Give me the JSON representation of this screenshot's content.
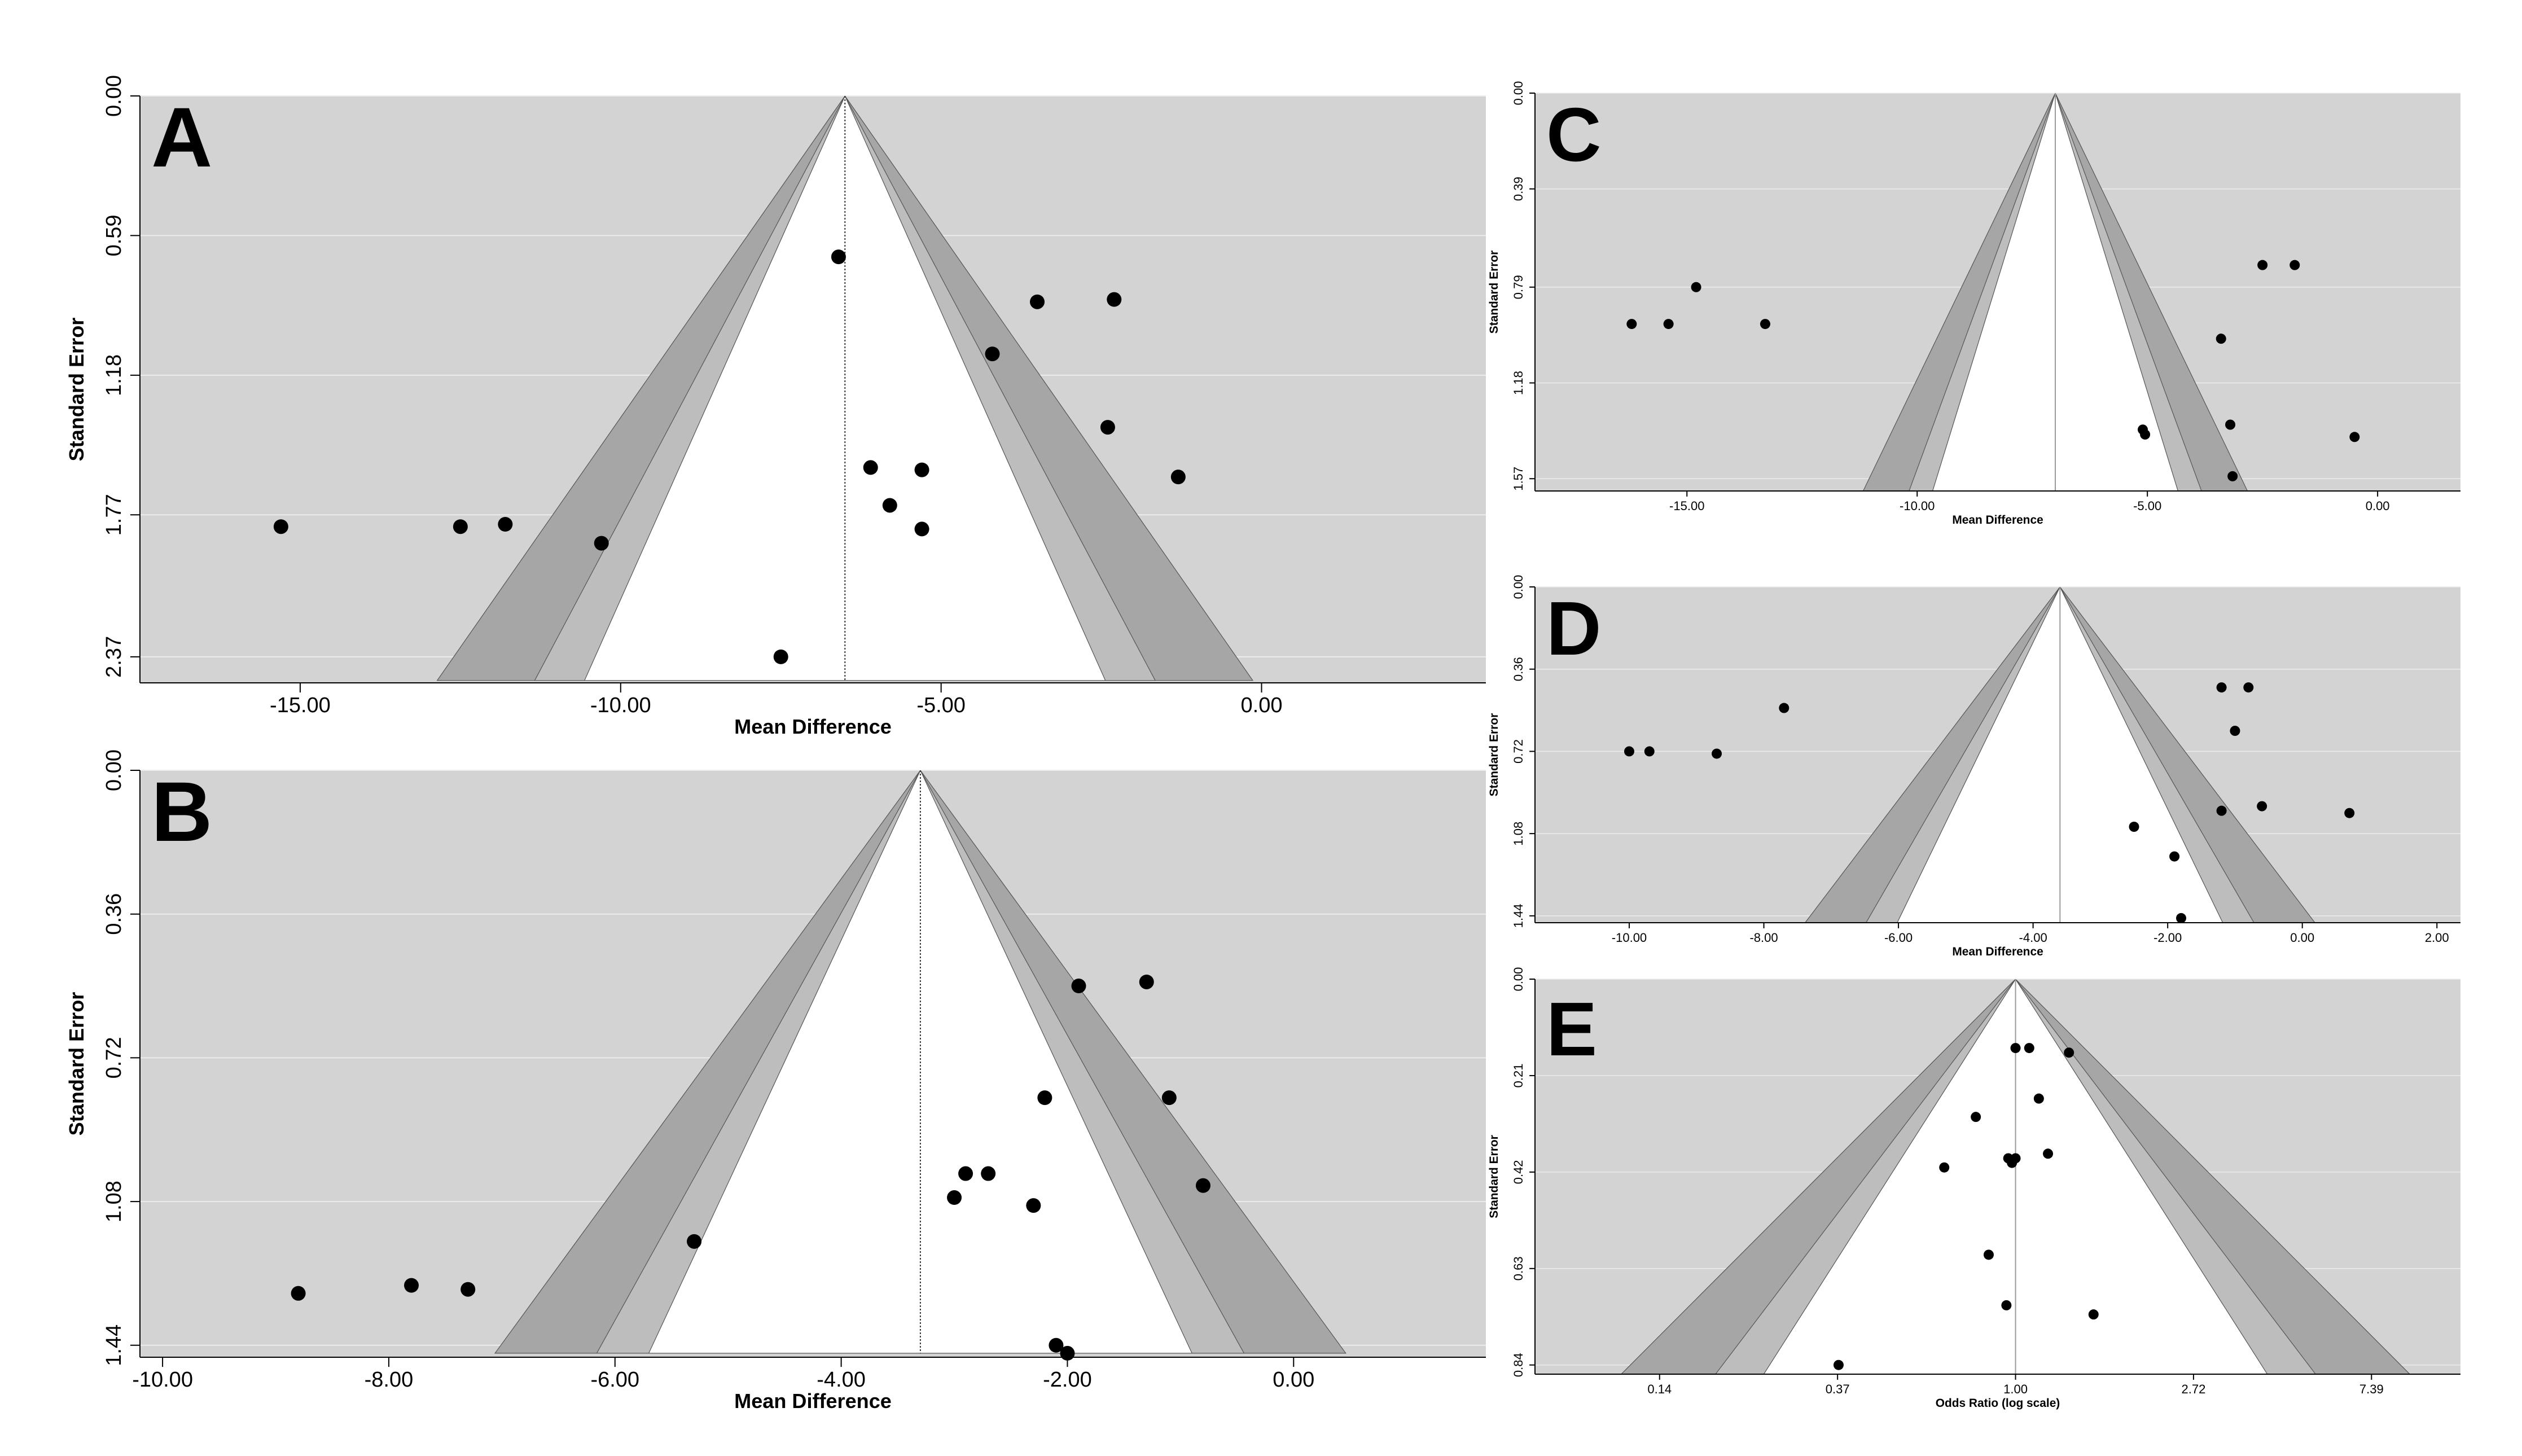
{
  "figure": {
    "description_title": "",
    "colors": {
      "plot_bg": "#d3d3d3",
      "funnel_outer": "#a6a6a6",
      "funnel_mid": "#bdbdbd",
      "funnel_inner": "#ffffff",
      "gridline": "#ececec",
      "point": "#000000"
    }
  },
  "chart_data": [
    {
      "id": "A",
      "letter": "A",
      "type": "scatter",
      "subtype": "funnel",
      "xlabel": "Mean Difference",
      "ylabel": "Standard Error",
      "xscale": "linear",
      "xlim": [
        -17.5,
        3.5
      ],
      "ylim": [
        0,
        2.48
      ],
      "y_inverted": true,
      "center": -6.5,
      "center_line": "dotted",
      "xticks": [
        -15,
        -10,
        -5,
        0
      ],
      "xtick_labels": [
        "-15.00",
        "-10.00",
        "-5.00",
        "0.00"
      ],
      "yticks": [
        0,
        0.59,
        1.18,
        1.77,
        2.37
      ],
      "ytick_labels": [
        "0.00",
        "0.59",
        "1.18",
        "1.77",
        "2.37"
      ],
      "funnel_bottom_se": 2.47,
      "points": [
        {
          "x": -15.3,
          "y": 1.82
        },
        {
          "x": -12.5,
          "y": 1.82
        },
        {
          "x": -11.8,
          "y": 1.81
        },
        {
          "x": -10.3,
          "y": 1.89
        },
        {
          "x": -7.5,
          "y": 2.37
        },
        {
          "x": -6.6,
          "y": 0.68
        },
        {
          "x": -6.1,
          "y": 1.57
        },
        {
          "x": -5.8,
          "y": 1.73
        },
        {
          "x": -5.3,
          "y": 1.58
        },
        {
          "x": -5.3,
          "y": 1.83
        },
        {
          "x": -4.2,
          "y": 1.09
        },
        {
          "x": -3.5,
          "y": 0.87
        },
        {
          "x": -2.3,
          "y": 0.86
        },
        {
          "x": -2.4,
          "y": 1.4
        },
        {
          "x": -1.3,
          "y": 1.61
        }
      ]
    },
    {
      "id": "B",
      "letter": "B",
      "type": "scatter",
      "subtype": "funnel",
      "xlabel": "Mean Difference",
      "ylabel": "Standard Error",
      "xscale": "linear",
      "xlim": [
        -10.2,
        1.7
      ],
      "ylim": [
        0,
        1.47
      ],
      "y_inverted": true,
      "center": -3.3,
      "center_line": "dotted",
      "xticks": [
        -10,
        -8,
        -6,
        -4,
        -2,
        0
      ],
      "xtick_labels": [
        "-10.00",
        "-8.00",
        "-6.00",
        "-4.00",
        "-2.00",
        "0.00"
      ],
      "yticks": [
        0,
        0.36,
        0.72,
        1.08,
        1.44
      ],
      "ytick_labels": [
        "0.00",
        "0.36",
        "0.72",
        "1.08",
        "1.44"
      ],
      "funnel_bottom_se": 1.46,
      "points": [
        {
          "x": -8.8,
          "y": 1.31
        },
        {
          "x": -7.8,
          "y": 1.29
        },
        {
          "x": -7.3,
          "y": 1.3
        },
        {
          "x": -5.3,
          "y": 1.18
        },
        {
          "x": -3.0,
          "y": 1.07
        },
        {
          "x": -2.9,
          "y": 1.01
        },
        {
          "x": -2.7,
          "y": 1.01
        },
        {
          "x": -2.3,
          "y": 1.09
        },
        {
          "x": -2.2,
          "y": 0.82
        },
        {
          "x": -1.9,
          "y": 0.54
        },
        {
          "x": -1.3,
          "y": 0.53
        },
        {
          "x": -1.1,
          "y": 0.82
        },
        {
          "x": -0.8,
          "y": 1.04
        },
        {
          "x": -2.1,
          "y": 1.44
        },
        {
          "x": -2.0,
          "y": 1.46
        }
      ]
    },
    {
      "id": "C",
      "letter": "C",
      "type": "scatter",
      "subtype": "funnel",
      "xlabel": "Mean Difference",
      "ylabel": "Standard Error",
      "xscale": "linear",
      "xlim": [
        -18.3,
        1.8
      ],
      "ylim": [
        0,
        1.62
      ],
      "y_inverted": true,
      "center": -7.0,
      "center_line": "solid",
      "xticks": [
        -15,
        -10,
        -5,
        0
      ],
      "xtick_labels": [
        "-15.00",
        "-10.00",
        "-5.00",
        "0.00"
      ],
      "yticks": [
        0,
        0.39,
        0.79,
        1.18,
        1.57
      ],
      "ytick_labels": [
        "0.00",
        "0.39",
        "0.79",
        "1.18",
        "1.57"
      ],
      "funnel_bottom_se": 1.62,
      "points": [
        {
          "x": -16.2,
          "y": 0.94
        },
        {
          "x": -15.4,
          "y": 0.94
        },
        {
          "x": -14.8,
          "y": 0.79
        },
        {
          "x": -13.3,
          "y": 0.94
        },
        {
          "x": -5.1,
          "y": 1.37
        },
        {
          "x": -5.05,
          "y": 1.39
        },
        {
          "x": -3.4,
          "y": 1.0
        },
        {
          "x": -3.2,
          "y": 1.35
        },
        {
          "x": -3.15,
          "y": 1.56
        },
        {
          "x": -2.5,
          "y": 0.7
        },
        {
          "x": -1.8,
          "y": 0.7
        },
        {
          "x": -0.5,
          "y": 1.4
        }
      ]
    },
    {
      "id": "D",
      "letter": "D",
      "type": "scatter",
      "subtype": "funnel",
      "xlabel": "Mean Difference",
      "ylabel": "Standard Error",
      "xscale": "linear",
      "xlim": [
        -11.4,
        2.35
      ],
      "ylim": [
        0,
        1.47
      ],
      "y_inverted": true,
      "center": -3.6,
      "center_line": "solid",
      "xticks": [
        -10,
        -8,
        -6,
        -4,
        -2,
        0,
        2
      ],
      "xtick_labels": [
        "-10.00",
        "-8.00",
        "-6.00",
        "-4.00",
        "-2.00",
        "0.00",
        "2.00"
      ],
      "yticks": [
        0,
        0.36,
        0.72,
        1.08,
        1.44
      ],
      "ytick_labels": [
        "0.00",
        "0.36",
        "0.72",
        "1.08",
        "1.44"
      ],
      "funnel_bottom_se": 1.5,
      "points": [
        {
          "x": -10.0,
          "y": 0.72
        },
        {
          "x": -9.7,
          "y": 0.72
        },
        {
          "x": -8.7,
          "y": 0.73
        },
        {
          "x": -7.7,
          "y": 0.53
        },
        {
          "x": -2.5,
          "y": 1.05
        },
        {
          "x": -1.9,
          "y": 1.18
        },
        {
          "x": -1.8,
          "y": 1.45
        },
        {
          "x": -1.2,
          "y": 0.44
        },
        {
          "x": -1.2,
          "y": 0.98
        },
        {
          "x": -1.0,
          "y": 0.63
        },
        {
          "x": -0.8,
          "y": 0.44
        },
        {
          "x": -0.6,
          "y": 0.96
        },
        {
          "x": 0.7,
          "y": 0.99
        }
      ]
    },
    {
      "id": "E",
      "letter": "E",
      "type": "scatter",
      "subtype": "funnel",
      "xlabel": "Odds Ratio (log scale)",
      "ylabel": "Standard Error",
      "xscale": "log",
      "xlim_log": [
        -2.7,
        2.5
      ],
      "ylim": [
        0,
        0.86
      ],
      "y_inverted": true,
      "center_log": 0.0,
      "center_line": "solid",
      "xticks_log": [
        -2,
        -1,
        0,
        1,
        2
      ],
      "xtick_labels": [
        "0.14",
        "0.37",
        "1.00",
        "2.72",
        "7.39"
      ],
      "yticks": [
        0,
        0.21,
        0.42,
        0.63,
        0.84
      ],
      "ytick_labels": [
        "0.00",
        "0.21",
        "0.42",
        "0.63",
        "0.84"
      ],
      "funnel_bottom_se": 0.86,
      "points": [
        {
          "x": 0.37,
          "y": 0.84
        },
        {
          "x": 0.67,
          "y": 0.41
        },
        {
          "x": 0.8,
          "y": 0.3
        },
        {
          "x": 0.86,
          "y": 0.6
        },
        {
          "x": 0.95,
          "y": 0.71
        },
        {
          "x": 0.96,
          "y": 0.39
        },
        {
          "x": 0.98,
          "y": 0.4
        },
        {
          "x": 1.0,
          "y": 0.39
        },
        {
          "x": 1.0,
          "y": 0.15
        },
        {
          "x": 1.08,
          "y": 0.15
        },
        {
          "x": 1.14,
          "y": 0.26
        },
        {
          "x": 1.2,
          "y": 0.38
        },
        {
          "x": 1.35,
          "y": 0.16
        },
        {
          "x": 1.55,
          "y": 0.73
        }
      ]
    }
  ]
}
